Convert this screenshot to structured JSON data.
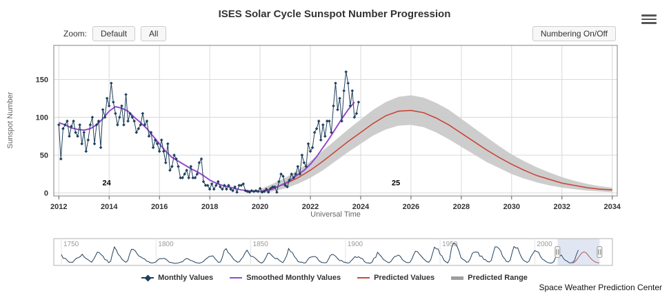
{
  "toolbar": {
    "zoom_label": "Zoom:",
    "default_button": "Default",
    "all_button": "All",
    "numbering_button": "Numbering On/Off"
  },
  "chart_data": {
    "type": "line",
    "title": "ISES Solar Cycle Sunspot Number Progression",
    "xlabel": "Universal Time",
    "ylabel": "Sunspot Number",
    "xlim": [
      2011.8,
      2034.2
    ],
    "ylim": [
      -4,
      195
    ],
    "x_ticks": [
      2012,
      2014,
      2016,
      2018,
      2020,
      2022,
      2024,
      2026,
      2028,
      2030,
      2032,
      2034
    ],
    "y_ticks": [
      0,
      50,
      100,
      150
    ],
    "annotations": [
      {
        "label": "24",
        "x": 2013.9,
        "y": 10
      },
      {
        "label": "25",
        "x": 2025.4,
        "y": 10
      }
    ],
    "series": {
      "monthly": {
        "name": "Monthly Values",
        "color": "#1f3f5c",
        "start": 2012.0,
        "step_months": 1,
        "values": [
          90,
          45,
          85,
          90,
          95,
          75,
          88,
          95,
          80,
          75,
          90,
          65,
          80,
          55,
          70,
          90,
          100,
          65,
          90,
          95,
          60,
          110,
          100,
          125,
          115,
          145,
          120,
          105,
          90,
          100,
          115,
          90,
          130,
          95,
          105,
          100,
          95,
          80,
          85,
          90,
          105,
          90,
          95,
          75,
          80,
          60,
          70,
          65,
          55,
          70,
          55,
          40,
          65,
          30,
          35,
          50,
          45,
          35,
          20,
          20,
          25,
          30,
          20,
          35,
          20,
          20,
          25,
          40,
          45,
          15,
          10,
          10,
          5,
          12,
          5,
          10,
          15,
          8,
          5,
          10,
          5,
          10,
          5,
          3,
          8,
          1,
          10,
          10,
          12,
          3,
          2,
          1,
          3,
          2,
          3,
          2,
          6,
          1,
          2,
          5,
          1,
          6,
          8,
          8,
          1,
          15,
          25,
          22,
          10,
          8,
          17,
          25,
          20,
          25,
          35,
          25,
          50,
          40,
          35,
          65,
          55,
          60,
          80,
          85,
          95,
          70,
          90,
          75,
          95,
          95,
          80,
          115,
          145,
          110,
          125,
          95,
          135,
          160,
          145,
          115,
          135,
          100,
          105,
          120
        ]
      },
      "smoothed": {
        "name": "Smoothed Monthly Values",
        "color": "#9349cf",
        "start": 2012.0,
        "step_months": 3,
        "values": [
          93,
          90,
          86,
          84,
          83,
          85,
          90,
          98,
          108,
          114,
          112,
          108,
          100,
          93,
          85,
          75,
          65,
          55,
          47,
          42,
          37,
          32,
          28,
          23,
          17,
          13,
          10,
          8,
          6,
          4,
          3,
          2,
          2,
          3,
          5,
          9,
          13,
          18,
          24,
          30,
          38,
          48,
          60,
          72,
          85,
          98,
          110,
          120
        ]
      },
      "predicted": {
        "name": "Predicted Values",
        "color": "#c94638",
        "start": 2020.0,
        "step_months": 6,
        "values": [
          2,
          6,
          12,
          20,
          30,
          42,
          55,
          68,
          80,
          92,
          102,
          108,
          109,
          106,
          99,
          90,
          79,
          68,
          57,
          47,
          38,
          30,
          23,
          18,
          13,
          10,
          7,
          5,
          4
        ]
      },
      "predicted_range": {
        "name": "Predicted Range",
        "color": "#c8c8c8",
        "start": 2020.0,
        "step_months": 6,
        "lower": [
          0,
          2,
          6,
          12,
          20,
          30,
          42,
          54,
          65,
          76,
          84,
          89,
          90,
          87,
          80,
          71,
          61,
          51,
          41,
          33,
          25,
          19,
          14,
          10,
          7,
          5,
          3,
          2,
          1
        ],
        "upper": [
          5,
          12,
          20,
          30,
          42,
          56,
          70,
          84,
          97,
          110,
          120,
          127,
          129,
          126,
          119,
          110,
          98,
          86,
          74,
          62,
          51,
          42,
          34,
          27,
          21,
          16,
          12,
          9,
          7
        ]
      }
    },
    "navigator": {
      "range": [
        1746,
        2041
      ],
      "selection": [
        2012,
        2034.2
      ],
      "x_ticks": [
        1750,
        1800,
        1850,
        1900,
        1950,
        2000
      ],
      "historical": {
        "start": 1750,
        "step_years": 1,
        "values": [
          83,
          48,
          48,
          31,
          12,
          10,
          10,
          32,
          48,
          54,
          63,
          86,
          61,
          45,
          36,
          21,
          11,
          38,
          70,
          106,
          101,
          82,
          67,
          35,
          31,
          7,
          20,
          93,
          154,
          126,
          85,
          68,
          39,
          23,
          10,
          24,
          83,
          132,
          131,
          118,
          90,
          67,
          60,
          47,
          41,
          21,
          16,
          6,
          4,
          7,
          15,
          34,
          45,
          43,
          48,
          42,
          28,
          10,
          8,
          3,
          0,
          1,
          5,
          12,
          14,
          35,
          46,
          41,
          30,
          24,
          16,
          7,
          4,
          2,
          9,
          17,
          36,
          50,
          64,
          67,
          71,
          48,
          28,
          9,
          13,
          57,
          122,
          138,
          103,
          86,
          63,
          37,
          24,
          11,
          15,
          40,
          62,
          98,
          124,
          96,
          66,
          65,
          54,
          39,
          21,
          7,
          4,
          23,
          55,
          94,
          96,
          77,
          59,
          44,
          47,
          31,
          16,
          7,
          37,
          74,
          139,
          111,
          102,
          66,
          45,
          17,
          11,
          12,
          3,
          6,
          32,
          54,
          60,
          64,
          64,
          52,
          25,
          13,
          7,
          6,
          7,
          36,
          73,
          85,
          78,
          64,
          42,
          26,
          27,
          12,
          10,
          3,
          5,
          24,
          42,
          64,
          54,
          62,
          49,
          44,
          19,
          6,
          4,
          1,
          10,
          47,
          57,
          104,
          81,
          64,
          38,
          26,
          14,
          6,
          17,
          44,
          64,
          69,
          78,
          65,
          36,
          21,
          11,
          6,
          9,
          36,
          80,
          114,
          110,
          89,
          68,
          48,
          31,
          16,
          10,
          33,
          93,
          152,
          136,
          135,
          84,
          69,
          31,
          14,
          4,
          38,
          142,
          190,
          185,
          159,
          112,
          54,
          38,
          28,
          10,
          15,
          47,
          94,
          106,
          106,
          104,
          67,
          69,
          38,
          34,
          16,
          13,
          28,
          93,
          155,
          155,
          140,
          116,
          67,
          46,
          18,
          13,
          29,
          100,
          158,
          143,
          146,
          94,
          55,
          30,
          18,
          9,
          22,
          64,
          93,
          120,
          111,
          104,
          64,
          40,
          30,
          15,
          8,
          3,
          3,
          16,
          56,
          58,
          65,
          79,
          50,
          29,
          22,
          7,
          4,
          9,
          29,
          83,
          125
        ]
      },
      "predicted": {
        "start": 2020,
        "step_years": 1,
        "values": [
          2,
          12,
          30,
          55,
          80,
          100,
          108,
          100,
          80,
          57,
          38,
          23,
          13,
          7,
          4
        ]
      }
    }
  },
  "legend": {
    "items": [
      {
        "label": "Monthly Values",
        "color": "#1f3f5c",
        "marker": "diamond-line"
      },
      {
        "label": "Smoothed Monthly Values",
        "color": "#9349cf",
        "marker": "line"
      },
      {
        "label": "Predicted Values",
        "color": "#c94638",
        "marker": "line"
      },
      {
        "label": "Predicted Range",
        "color": "#9e9e9e",
        "marker": "thick-line"
      }
    ]
  },
  "footer": {
    "credit": "Space Weather Prediction Center"
  }
}
